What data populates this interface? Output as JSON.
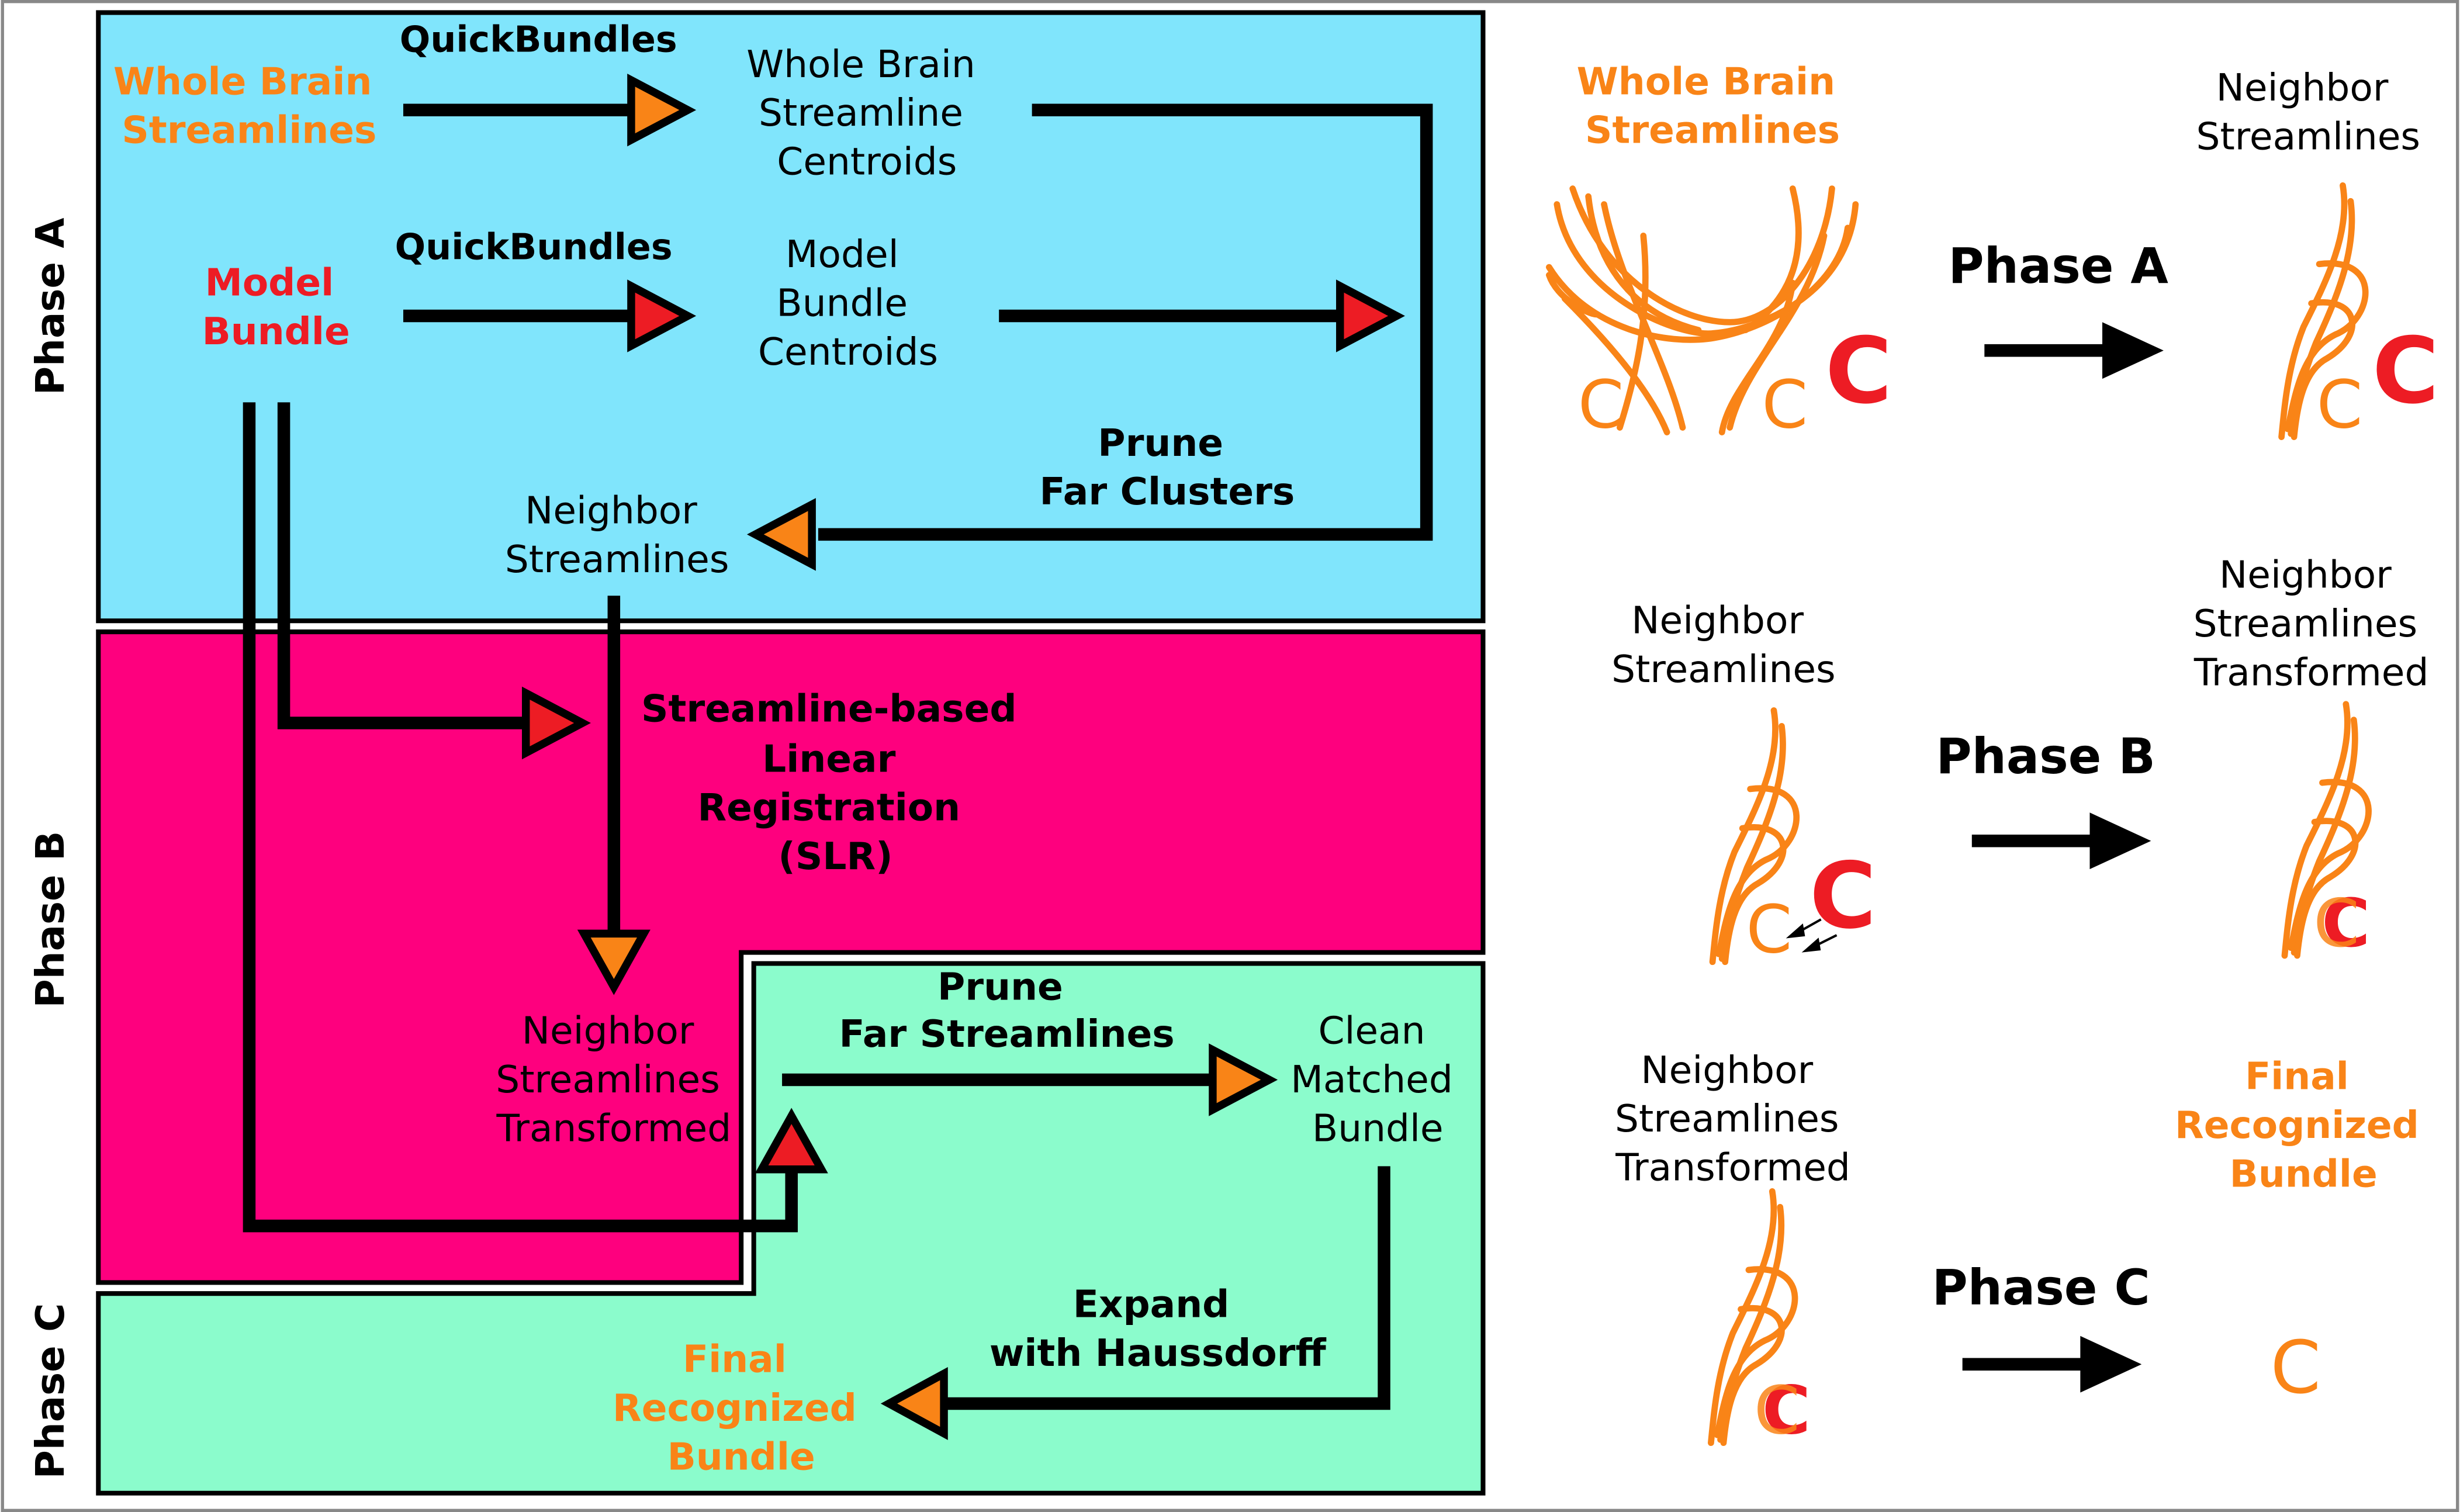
{
  "colors": {
    "phase_a_bg": "#80e5fc",
    "phase_b_bg": "#fe007e",
    "phase_c_bg": "#8bfccc",
    "orange": "#f98417",
    "red": "#ed1c24",
    "black": "#000000",
    "frame": "#888888"
  },
  "phase_labels": {
    "a": "Phase A",
    "b": "Phase B",
    "c": "Phase C"
  },
  "flowchart": {
    "whole_brain": [
      "Whole Brain",
      "Streamlines"
    ],
    "qb1": "QuickBundles",
    "wb_centroids": [
      "Whole Brain",
      "Streamline",
      "Centroids"
    ],
    "model_bundle": [
      "Model",
      "Bundle"
    ],
    "qb2": "QuickBundles",
    "model_centroids": [
      "Model",
      "Bundle",
      "Centroids"
    ],
    "prune_clusters": [
      "Prune",
      "Far Clusters"
    ],
    "neighbor": [
      "Neighbor",
      "Streamlines"
    ],
    "slr": [
      "Streamline-based",
      "Linear",
      "Registration",
      "(SLR)"
    ],
    "neighbor_transformed": [
      "Neighbor",
      "Streamlines",
      "Transformed"
    ],
    "prune_streamlines": [
      "Prune",
      "Far Streamlines"
    ],
    "clean": [
      "Clean",
      "Matched",
      "Bundle"
    ],
    "expand": [
      "Expand",
      "with Haussdorff"
    ],
    "final": [
      "Final",
      "Recognized",
      "Bundle"
    ]
  },
  "illustration": {
    "a_left": [
      "Whole Brain",
      "Streamlines"
    ],
    "a_phase": "Phase A",
    "a_right": [
      "Neighbor",
      "Streamlines"
    ],
    "b_left": [
      "Neighbor",
      "Streamlines"
    ],
    "b_phase": "Phase B",
    "b_right": [
      "Neighbor",
      "Streamlines",
      "Transformed"
    ],
    "c_left": [
      "Neighbor",
      "Streamlines",
      "Transformed"
    ],
    "c_phase": "Phase C",
    "c_right": [
      "Final",
      "Recognized",
      "Bundle"
    ]
  }
}
